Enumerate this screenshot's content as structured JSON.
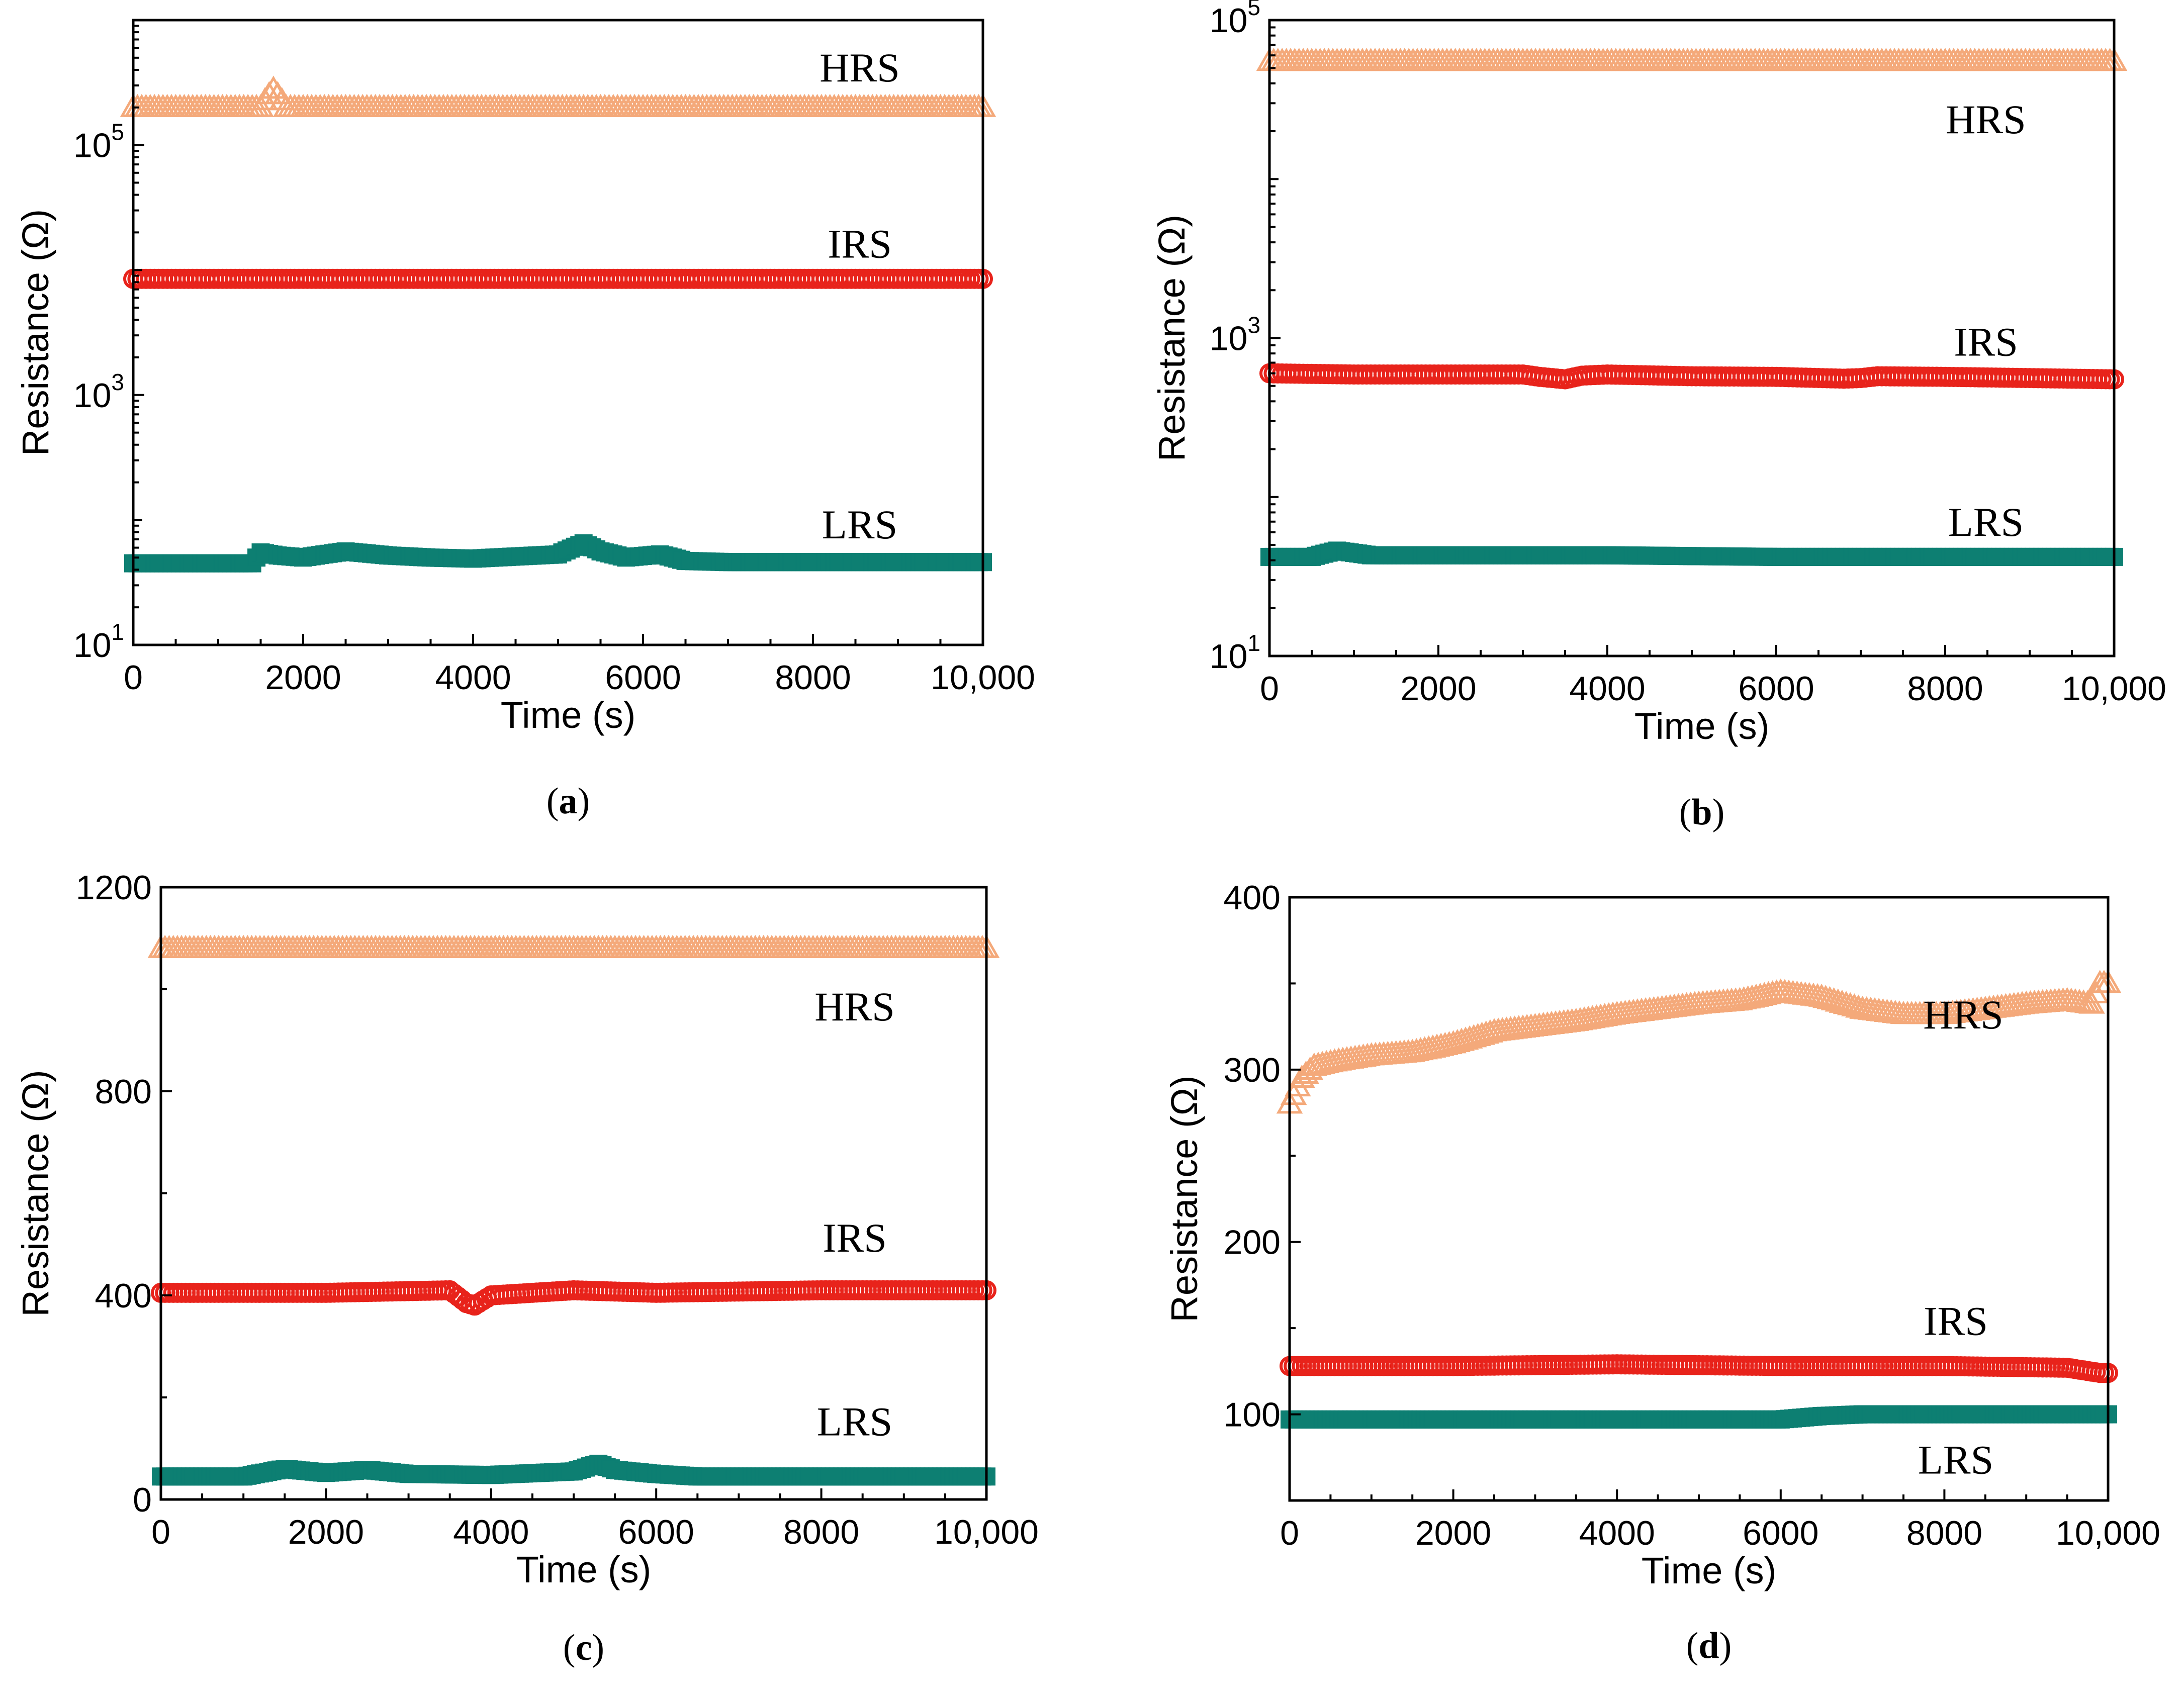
{
  "chart_data": [
    {
      "panel": "a",
      "type": "scatter",
      "yscale": "log",
      "xlabel": "Time (s)",
      "ylabel": "Resistance (Ω)",
      "xlim": [
        0,
        10000
      ],
      "ylim": [
        10,
        1000000
      ],
      "xticks": [
        0,
        2000,
        4000,
        6000,
        8000,
        10000
      ],
      "xtick_labels": [
        "0",
        "2000",
        "4000",
        "6000",
        "8000",
        "10,000"
      ],
      "yticks": [
        10,
        1000,
        100000
      ],
      "ytick_labels": [
        {
          "base": "10",
          "exp": "1"
        },
        {
          "base": "10",
          "exp": "3"
        },
        {
          "base": "10",
          "exp": "5"
        }
      ],
      "series": [
        {
          "name": "HRS",
          "marker": "triangle-open",
          "color": "#f4a97a",
          "x": [
            0,
            1000,
            1500,
            1650,
            1800,
            3000,
            5000,
            7000,
            9000,
            10000
          ],
          "y": [
            200000,
            200000,
            200000,
            280000,
            200000,
            200000,
            200000,
            200000,
            200000,
            200000
          ]
        },
        {
          "name": "IRS",
          "marker": "circle-open",
          "color": "#e8231b",
          "x": [
            0,
            2000,
            4000,
            6000,
            8000,
            10000
          ],
          "y": [
            8500,
            8500,
            8500,
            8500,
            8500,
            8500
          ]
        },
        {
          "name": "LRS",
          "marker": "square-filled",
          "color": "#0d7f72",
          "x": [
            0,
            1000,
            1400,
            1500,
            1700,
            2000,
            2500,
            3000,
            3500,
            4000,
            4500,
            5000,
            5300,
            5500,
            5800,
            6200,
            6500,
            7000,
            8000,
            9000,
            10000
          ],
          "y": [
            45,
            45,
            45,
            55,
            52,
            50,
            56,
            52,
            50,
            49,
            51,
            53,
            65,
            56,
            50,
            53,
            47,
            46,
            46,
            46,
            46
          ]
        }
      ],
      "labels": [
        "HRS",
        "IRS",
        "LRS"
      ],
      "caption": "a"
    },
    {
      "panel": "b",
      "type": "scatter",
      "yscale": "log",
      "xlabel": "Time (s)",
      "ylabel": "Resistance (Ω)",
      "xlim": [
        0,
        10000
      ],
      "ylim": [
        10,
        100000
      ],
      "xticks": [
        0,
        2000,
        4000,
        6000,
        8000,
        10000
      ],
      "xtick_labels": [
        "0",
        "2000",
        "4000",
        "6000",
        "8000",
        "10,000"
      ],
      "yticks": [
        10,
        1000,
        100000
      ],
      "ytick_labels": [
        {
          "base": "10",
          "exp": "1"
        },
        {
          "base": "10",
          "exp": "3"
        },
        {
          "base": "10",
          "exp": "5"
        }
      ],
      "series": [
        {
          "name": "HRS",
          "marker": "triangle-open",
          "color": "#f4a97a",
          "x": [
            0,
            2000,
            4000,
            6000,
            8000,
            10000
          ],
          "y": [
            55000,
            55000,
            55000,
            55000,
            55000,
            55000
          ]
        },
        {
          "name": "IRS",
          "marker": "circle-open",
          "color": "#e8231b",
          "x": [
            0,
            1000,
            2000,
            3000,
            3200,
            3500,
            3700,
            4000,
            5000,
            6000,
            6800,
            7000,
            7200,
            8000,
            9000,
            10000
          ],
          "y": [
            600,
            590,
            590,
            590,
            570,
            550,
            580,
            590,
            575,
            570,
            555,
            560,
            575,
            570,
            560,
            550
          ]
        },
        {
          "name": "LRS",
          "marker": "square-filled",
          "color": "#0d7f72",
          "x": [
            0,
            500,
            800,
            1200,
            2000,
            4000,
            6000,
            8000,
            10000
          ],
          "y": [
            42,
            42,
            46,
            43,
            43,
            43,
            42,
            42,
            42
          ]
        }
      ],
      "labels": [
        "HRS",
        "IRS",
        "LRS"
      ],
      "caption": "b"
    },
    {
      "panel": "c",
      "type": "scatter",
      "yscale": "linear",
      "xlabel": "Time (s)",
      "ylabel": "Resistance (Ω)",
      "xlim": [
        0,
        10000
      ],
      "ylim": [
        0,
        1200
      ],
      "xticks": [
        0,
        2000,
        4000,
        6000,
        8000,
        10000
      ],
      "xtick_labels": [
        "0",
        "2000",
        "4000",
        "6000",
        "8000",
        "10,000"
      ],
      "yticks": [
        0,
        400,
        800,
        1200
      ],
      "ytick_labels": [
        "0",
        "400",
        "800",
        "1200"
      ],
      "series": [
        {
          "name": "HRS",
          "marker": "triangle-open",
          "color": "#f4a97a",
          "x": [
            0,
            2000,
            4000,
            6000,
            8000,
            10000
          ],
          "y": [
            1080,
            1080,
            1080,
            1080,
            1080,
            1080
          ]
        },
        {
          "name": "IRS",
          "marker": "circle-open",
          "color": "#e8231b",
          "x": [
            0,
            2000,
            3500,
            3700,
            3800,
            4000,
            5000,
            6000,
            8000,
            10000
          ],
          "y": [
            405,
            405,
            410,
            385,
            380,
            400,
            410,
            405,
            410,
            410
          ]
        },
        {
          "name": "LRS",
          "marker": "square-filled",
          "color": "#0d7f72",
          "x": [
            0,
            1000,
            1500,
            2000,
            2500,
            3000,
            4000,
            5000,
            5300,
            5500,
            6000,
            6500,
            8000,
            10000
          ],
          "y": [
            45,
            45,
            60,
            52,
            58,
            50,
            48,
            55,
            70,
            58,
            50,
            45,
            45,
            45
          ]
        }
      ],
      "labels": [
        "HRS",
        "IRS",
        "LRS"
      ],
      "caption": "c"
    },
    {
      "panel": "d",
      "type": "scatter",
      "yscale": "linear",
      "xlabel": "Time (s)",
      "ylabel": "Resistance (Ω)",
      "xlim": [
        0,
        10000
      ],
      "ylim": [
        50,
        400
      ],
      "xticks": [
        0,
        2000,
        4000,
        6000,
        8000,
        10000
      ],
      "xtick_labels": [
        "0",
        "2000",
        "4000",
        "6000",
        "8000",
        "10,000"
      ],
      "yticks": [
        100,
        200,
        300,
        400
      ],
      "ytick_labels": [
        "100",
        "200",
        "300",
        "400"
      ],
      "series": [
        {
          "name": "HRS",
          "marker": "triangle-open",
          "color": "#f4a97a",
          "x": [
            0,
            150,
            300,
            600,
            1000,
            1500,
            2000,
            2500,
            3000,
            3500,
            4000,
            4500,
            5000,
            5500,
            6000,
            6500,
            7000,
            7500,
            8000,
            8500,
            9000,
            9500,
            9800,
            9900
          ],
          "y": [
            280,
            295,
            302,
            305,
            308,
            310,
            315,
            322,
            325,
            328,
            332,
            335,
            338,
            340,
            345,
            342,
            335,
            332,
            332,
            335,
            338,
            340,
            338,
            350
          ]
        },
        {
          "name": "IRS",
          "marker": "circle-open",
          "color": "#e8231b",
          "x": [
            0,
            2000,
            4000,
            6000,
            8000,
            9500,
            9900
          ],
          "y": [
            128,
            128,
            129,
            128,
            128,
            127,
            124
          ]
        },
        {
          "name": "LRS",
          "marker": "square-filled",
          "color": "#0d7f72",
          "x": [
            0,
            2000,
            4000,
            6000,
            6500,
            7000,
            8000,
            10000
          ],
          "y": [
            97,
            97,
            97,
            97,
            99,
            100,
            100,
            100
          ]
        }
      ],
      "labels": [
        "HRS",
        "IRS",
        "LRS"
      ],
      "caption": "d"
    }
  ]
}
